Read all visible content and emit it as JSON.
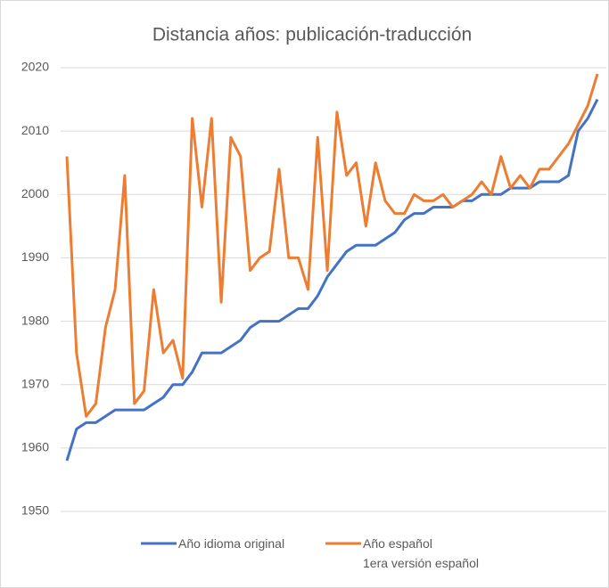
{
  "chart_data": {
    "type": "line",
    "title": "Distancia años: publicación-traducción",
    "ylim": [
      1950,
      2020
    ],
    "yticks": [
      1950,
      1960,
      1970,
      1980,
      1990,
      2000,
      2010,
      2020
    ],
    "grid": true,
    "legend": "bottom",
    "series": [
      {
        "name": "Año idioma original",
        "color": "#4472c4",
        "values": [
          1958,
          1963,
          1964,
          1964,
          1965,
          1966,
          1966,
          1966,
          1966,
          1967,
          1968,
          1970,
          1970,
          1972,
          1975,
          1975,
          1975,
          1976,
          1977,
          1979,
          1980,
          1980,
          1980,
          1981,
          1982,
          1982,
          1984,
          1987,
          1989,
          1991,
          1992,
          1992,
          1992,
          1993,
          1994,
          1996,
          1997,
          1997,
          1998,
          1998,
          1998,
          1999,
          1999,
          2000,
          2000,
          2000,
          2001,
          2001,
          2001,
          2002,
          2002,
          2002,
          2003,
          2010,
          2012,
          2015
        ]
      },
      {
        "name": "Año español\n1era versión español",
        "color": "#ed7d31",
        "values": [
          2006,
          1975,
          1965,
          1967,
          1979,
          1985,
          2003,
          1967,
          1969,
          1985,
          1975,
          1977,
          1971,
          2012,
          1998,
          2012,
          1983,
          2009,
          2006,
          1988,
          1990,
          1991,
          2004,
          1990,
          1990,
          1985,
          2009,
          1988,
          2013,
          2003,
          2005,
          1995,
          2005,
          1999,
          1997,
          1997,
          2000,
          1999,
          1999,
          2000,
          1998,
          1999,
          2000,
          2002,
          2000,
          2006,
          2001,
          2003,
          2001,
          2004,
          2004,
          2006,
          2008,
          2011,
          2014,
          2019
        ]
      }
    ]
  }
}
